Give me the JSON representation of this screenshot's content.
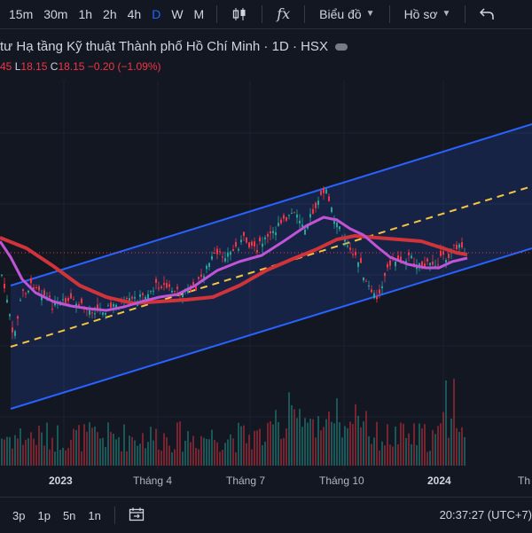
{
  "toolbar": {
    "timeframes": [
      "15m",
      "30m",
      "1h",
      "2h",
      "4h",
      "D",
      "W",
      "M"
    ],
    "active_timeframe": "D",
    "indicators_label": "fx",
    "chart_type_label": "Biểu đồ",
    "profile_label": "Hồ sơ"
  },
  "legend": {
    "title": "tư Hạ tầng Kỹ thuật Thành phố Hồ Chí Minh · 1D · HSX",
    "ohlc_prefix": "45",
    "low_label": "L",
    "low_value": "18.15",
    "close_label": "C",
    "close_value": "18.15",
    "change": "−0.20 (−1.09%)"
  },
  "x_axis": {
    "labels": [
      "2023",
      "Tháng 4",
      "Tháng 7",
      "Tháng 10",
      "2024",
      "Th"
    ]
  },
  "bottom_bar": {
    "ranges": [
      "3p",
      "1p",
      "5n",
      "1n"
    ],
    "time": "20:37:27 (UTC+7)"
  },
  "colors": {
    "background": "#131722",
    "channel_line": "#2962ff",
    "ma_long": "#d0343a",
    "ma_short": "#c054d6",
    "mid_line": "#f5c542",
    "bull": "#26a69a",
    "bear": "#f23645",
    "accent": "#2962ff"
  },
  "chart_data": {
    "type": "candlestick",
    "x_labels": [
      "2023",
      "Tháng 4",
      "Tháng 7",
      "Tháng 10",
      "2024"
    ],
    "last_close": 18.15,
    "change": -0.2,
    "change_pct": -1.09,
    "overlays": [
      "parallel channel",
      "moving average (red)",
      "moving average (purple)"
    ],
    "grid": true
  }
}
